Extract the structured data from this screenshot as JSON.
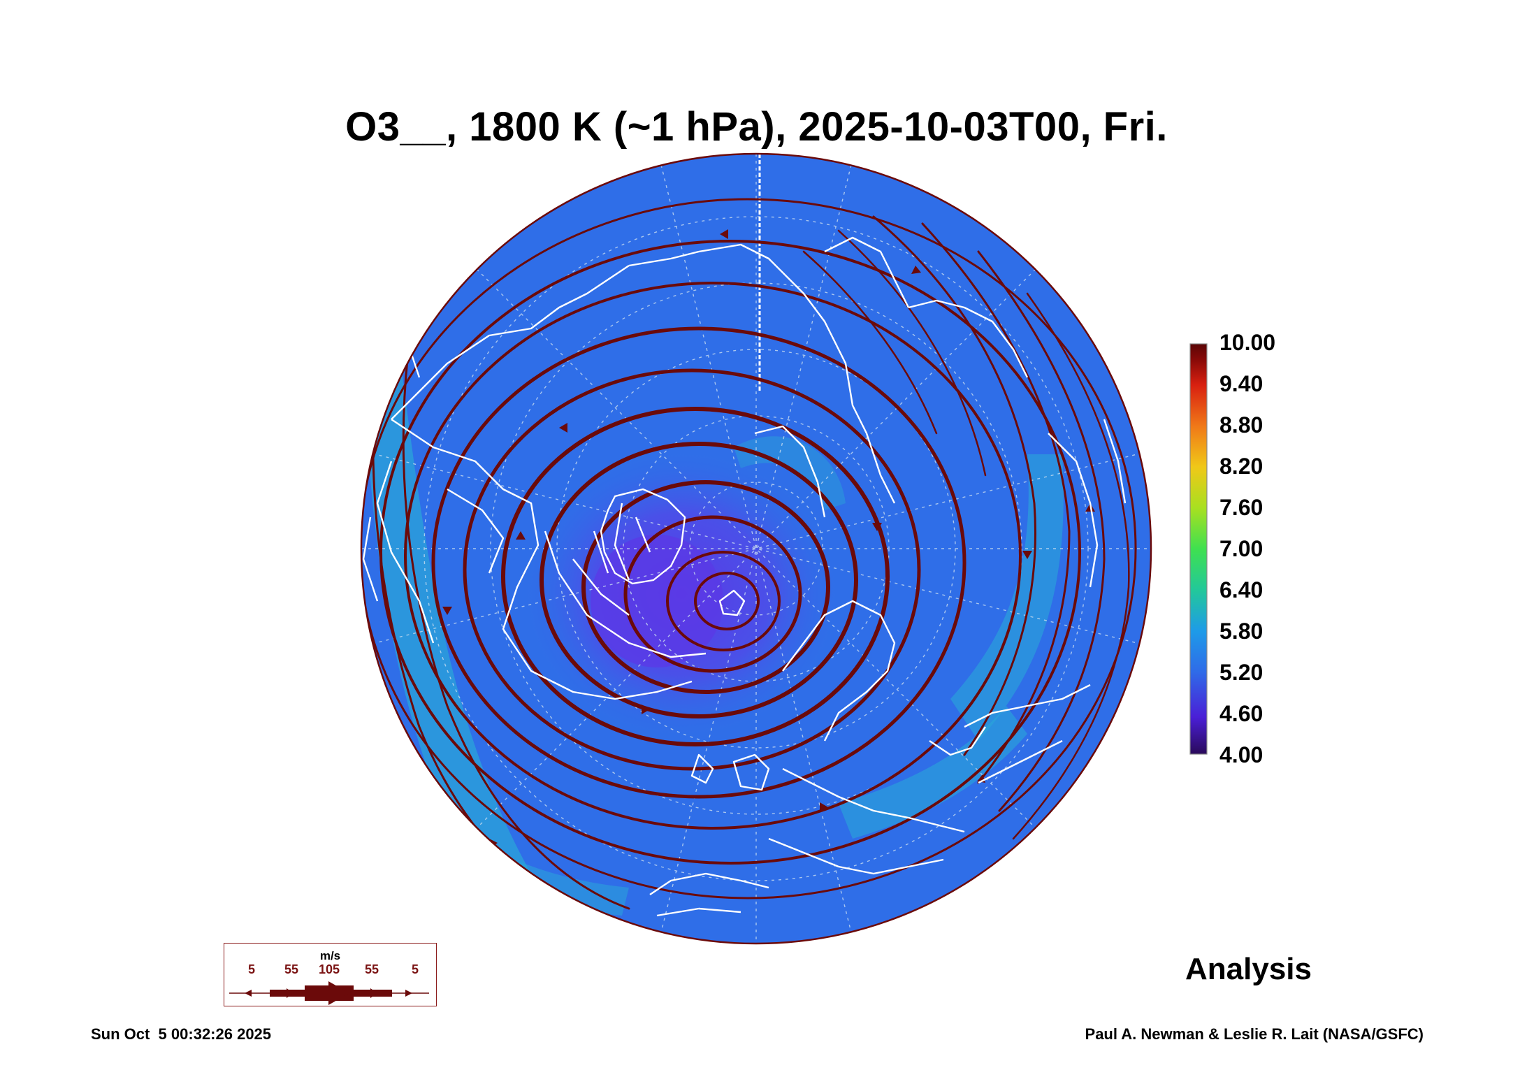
{
  "title": "O3__, 1800 K (~1 hPa), 2025-10-03T00, Fri.",
  "colorbar": {
    "labels": [
      "10.00",
      "9.40",
      "8.80",
      "8.20",
      "7.60",
      "7.00",
      "6.40",
      "5.80",
      "5.20",
      "4.60",
      "4.00"
    ],
    "colors": [
      "#2a0a5a",
      "#4a1fd6",
      "#2f6be8",
      "#1e9be8",
      "#22c89a",
      "#3fe050",
      "#a8e020",
      "#f0c818",
      "#f07818",
      "#d82010",
      "#8a0a08",
      "#5a0606"
    ]
  },
  "map": {
    "field_colors": {
      "low": "#5a3ae6",
      "mid": "#2f6ee8",
      "high": "#2aa6d8"
    },
    "streamline_color": "#6b0a0a",
    "coastline_color": "#ffffff"
  },
  "wind_key": {
    "unit": "m/s",
    "labels": [
      "5",
      "55",
      "105",
      "55",
      "5"
    ]
  },
  "analysis_label": "Analysis",
  "footer": {
    "timestamp": "Sun Oct  5 00:32:26 2025",
    "credit": "Paul A. Newman & Leslie R. Lait (NASA/GSFC)"
  }
}
